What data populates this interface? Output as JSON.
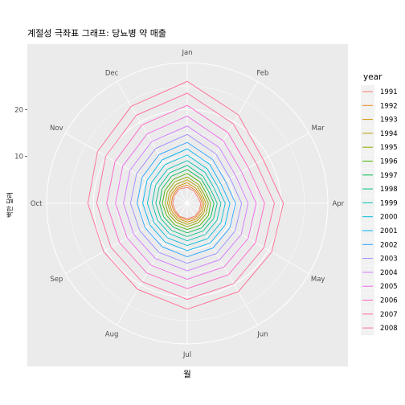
{
  "chart_data": {
    "type": "line",
    "coord": "polar",
    "title": "계절성 극좌표 그래프: 당뇨병 약 매출",
    "xlabel": "월",
    "ylabel": "백만 달러",
    "months": [
      "Jan",
      "Feb",
      "Mar",
      "Apr",
      "May",
      "Jun",
      "Jul",
      "Aug",
      "Sep",
      "Oct",
      "Nov",
      "Dec"
    ],
    "y_ticks": [
      10,
      20
    ],
    "ylim": [
      0,
      30
    ],
    "grid": true,
    "legend": {
      "title": "year",
      "position": "right"
    },
    "series": [
      {
        "name": "1991",
        "color": "#F8766D",
        "values": [
          3.4,
          3.0,
          2.6,
          2.9,
          3.0,
          3.2,
          3.3,
          3.2,
          3.0,
          3.1,
          3.2,
          3.5
        ]
      },
      {
        "name": "1992",
        "color": "#E7851E",
        "values": [
          3.9,
          3.3,
          3.0,
          3.2,
          3.3,
          3.5,
          3.6,
          3.4,
          3.3,
          3.4,
          3.5,
          3.8
        ]
      },
      {
        "name": "1993",
        "color": "#D09400",
        "values": [
          4.4,
          3.7,
          3.3,
          3.6,
          3.7,
          3.9,
          4.0,
          3.8,
          3.7,
          3.8,
          3.9,
          4.2
        ]
      },
      {
        "name": "1994",
        "color": "#B2A100",
        "values": [
          5.0,
          4.2,
          3.7,
          4.0,
          4.1,
          4.3,
          4.5,
          4.2,
          4.1,
          4.2,
          4.4,
          4.7
        ]
      },
      {
        "name": "1995",
        "color": "#89AC00",
        "values": [
          5.6,
          4.7,
          4.1,
          4.5,
          4.6,
          4.8,
          5.0,
          4.7,
          4.6,
          4.7,
          4.9,
          5.3
        ]
      },
      {
        "name": "1996",
        "color": "#45B500",
        "values": [
          6.4,
          5.3,
          4.6,
          5.0,
          5.2,
          5.4,
          5.6,
          5.3,
          5.1,
          5.3,
          5.5,
          5.9
        ]
      },
      {
        "name": "1997",
        "color": "#00BC51",
        "values": [
          7.2,
          6.0,
          5.2,
          5.7,
          5.8,
          6.1,
          6.3,
          5.9,
          5.8,
          5.9,
          6.2,
          6.7
        ]
      },
      {
        "name": "1998",
        "color": "#00C087",
        "values": [
          8.1,
          6.7,
          5.8,
          6.4,
          6.5,
          6.8,
          7.1,
          6.7,
          6.5,
          6.7,
          6.9,
          7.5
        ]
      },
      {
        "name": "1999",
        "color": "#00C0B2",
        "values": [
          9.1,
          7.6,
          6.6,
          7.2,
          7.3,
          7.7,
          8.0,
          7.5,
          7.3,
          7.5,
          7.8,
          8.4
        ]
      },
      {
        "name": "2000",
        "color": "#00BCD6",
        "values": [
          10.3,
          8.5,
          7.4,
          8.1,
          8.3,
          8.7,
          9.0,
          8.5,
          8.2,
          8.5,
          8.8,
          9.5
        ]
      },
      {
        "name": "2001",
        "color": "#00B3F2",
        "values": [
          11.6,
          9.6,
          8.3,
          9.1,
          9.3,
          9.8,
          10.1,
          9.5,
          9.2,
          9.5,
          9.9,
          10.7
        ]
      },
      {
        "name": "2002",
        "color": "#29A3FF",
        "values": [
          13.0,
          10.8,
          9.4,
          10.3,
          10.5,
          11.0,
          11.4,
          10.7,
          10.4,
          10.7,
          11.1,
          12.0
        ]
      },
      {
        "name": "2003",
        "color": "#9C8DFF",
        "values": [
          14.7,
          12.2,
          10.6,
          11.6,
          11.8,
          12.4,
          12.8,
          12.1,
          11.7,
          12.1,
          12.5,
          13.5
        ]
      },
      {
        "name": "2004",
        "color": "#D277FF",
        "values": [
          16.5,
          13.7,
          11.9,
          13.0,
          13.3,
          13.9,
          14.4,
          13.6,
          13.2,
          13.6,
          14.1,
          15.2
        ]
      },
      {
        "name": "2005",
        "color": "#F166E8",
        "values": [
          18.6,
          15.4,
          13.4,
          14.7,
          15.0,
          15.7,
          16.2,
          15.3,
          14.8,
          15.3,
          15.9,
          17.1
        ]
      },
      {
        "name": "2006",
        "color": "#FF61C7",
        "values": [
          20.9,
          17.4,
          15.1,
          16.5,
          16.8,
          17.6,
          18.2,
          17.2,
          16.7,
          17.2,
          17.8,
          19.3
        ]
      },
      {
        "name": "2007",
        "color": "#FF689E",
        "values": [
          23.5,
          19.6,
          17.0,
          18.6,
          18.9,
          19.8,
          20.5,
          19.3,
          18.8,
          19.3,
          20.1,
          21.7
        ]
      },
      {
        "name": "2008",
        "color": "#FF6C91",
        "values": [
          26.0,
          21.8,
          18.7,
          20.5,
          20.8,
          21.8,
          22.6,
          21.2,
          20.6,
          21.2,
          22.1,
          23.9
        ]
      }
    ]
  }
}
